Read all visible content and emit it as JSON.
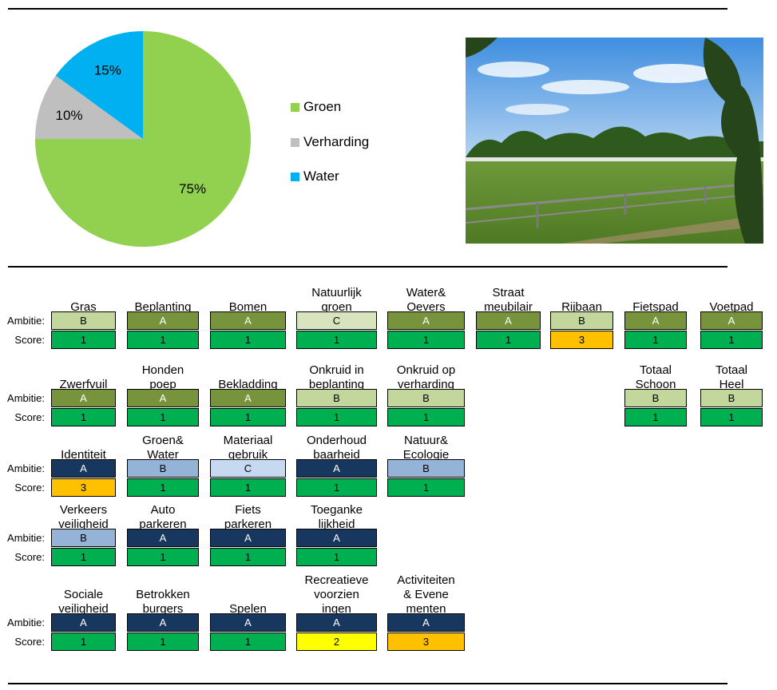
{
  "colors": {
    "groen": "#92D050",
    "verharding": "#BFBFBF",
    "water": "#00B0F0",
    "grA": "#77933C",
    "grB": "#C3D69B",
    "grC": "#D7E4BD",
    "blA": "#17375E",
    "blB": "#95B3D7",
    "blC": "#C6D9F1",
    "s1": "#00B050",
    "s2": "#FFFF00",
    "s3": "#FFC000"
  },
  "chart_data": {
    "type": "pie",
    "slices": [
      {
        "name": "Groen",
        "value": 75,
        "label": "75%",
        "color": "#92D050"
      },
      {
        "name": "Verharding",
        "value": 10,
        "label": "10%",
        "color": "#BFBFBF"
      },
      {
        "name": "Water",
        "value": 15,
        "label": "15%",
        "color": "#00B0F0"
      }
    ],
    "legend_position": "right"
  },
  "photo": {
    "description_icon": "sports-field-photo"
  },
  "labels": {
    "ambitie": "Ambitie:",
    "score": "Score:"
  },
  "grid": {
    "rows": [
      {
        "items": [
          {
            "name": "Gras",
            "ambitie": "B",
            "score": "1",
            "a_color": "#C3D69B",
            "s_color": "#00B050"
          },
          {
            "name": "Beplanting",
            "ambitie": "A",
            "score": "1",
            "a_color": "#77933C",
            "s_color": "#00B050"
          },
          {
            "name": "Bomen",
            "ambitie": "A",
            "score": "1",
            "a_color": "#77933C",
            "s_color": "#00B050"
          },
          {
            "name": "Natuurlijk\ngroen",
            "ambitie": "C",
            "score": "1",
            "a_color": "#D7E4BD",
            "s_color": "#00B050"
          },
          {
            "name": "Water&\nOevers",
            "ambitie": "A",
            "score": "1",
            "a_color": "#77933C",
            "s_color": "#00B050"
          },
          {
            "name": "Straat\nmeubilair",
            "ambitie": "A",
            "score": "1",
            "a_color": "#77933C",
            "s_color": "#00B050"
          },
          {
            "name": "Rijbaan",
            "ambitie": "B",
            "score": "3",
            "a_color": "#C3D69B",
            "s_color": "#FFC000"
          },
          {
            "name": "Fietspad",
            "ambitie": "A",
            "score": "1",
            "a_color": "#77933C",
            "s_color": "#00B050"
          },
          {
            "name": "Voetpad",
            "ambitie": "A",
            "score": "1",
            "a_color": "#77933C",
            "s_color": "#00B050"
          }
        ]
      },
      {
        "items": [
          {
            "name": "Zwerfvuil",
            "ambitie": "A",
            "score": "1",
            "a_color": "#77933C",
            "s_color": "#00B050"
          },
          {
            "name": "Honden\npoep",
            "ambitie": "A",
            "score": "1",
            "a_color": "#77933C",
            "s_color": "#00B050"
          },
          {
            "name": "Bekladding",
            "ambitie": "A",
            "score": "1",
            "a_color": "#77933C",
            "s_color": "#00B050"
          },
          {
            "name": "Onkruid in\nbeplanting",
            "ambitie": "B",
            "score": "1",
            "a_color": "#C3D69B",
            "s_color": "#00B050"
          },
          {
            "name": "Onkruid op\nverharding",
            "ambitie": "B",
            "score": "1",
            "a_color": "#C3D69B",
            "s_color": "#00B050"
          },
          {
            "name": "Totaal\nSchoon",
            "ambitie": "B",
            "score": "1",
            "a_color": "#C3D69B",
            "s_color": "#00B050"
          },
          {
            "name": "Totaal\nHeel",
            "ambitie": "B",
            "score": "1",
            "a_color": "#C3D69B",
            "s_color": "#00B050"
          }
        ]
      },
      {
        "items": [
          {
            "name": "Identiteit",
            "ambitie": "A",
            "score": "3",
            "a_color": "#17375E",
            "s_color": "#FFC000"
          },
          {
            "name": "Groen&\nWater",
            "ambitie": "B",
            "score": "1",
            "a_color": "#95B3D7",
            "s_color": "#00B050"
          },
          {
            "name": "Materiaal\ngebruik",
            "ambitie": "C",
            "score": "1",
            "a_color": "#C6D9F1",
            "s_color": "#00B050"
          },
          {
            "name": "Onderhoud\nbaarheid",
            "ambitie": "A",
            "score": "1",
            "a_color": "#17375E",
            "s_color": "#00B050"
          },
          {
            "name": "Natuur&\nEcologie",
            "ambitie": "B",
            "score": "1",
            "a_color": "#95B3D7",
            "s_color": "#00B050"
          }
        ]
      },
      {
        "items": [
          {
            "name": "Verkeers\nveiligheid",
            "ambitie": "B",
            "score": "1",
            "a_color": "#95B3D7",
            "s_color": "#00B050"
          },
          {
            "name": "Auto\nparkeren",
            "ambitie": "A",
            "score": "1",
            "a_color": "#17375E",
            "s_color": "#00B050"
          },
          {
            "name": "Fiets\nparkeren",
            "ambitie": "A",
            "score": "1",
            "a_color": "#17375E",
            "s_color": "#00B050"
          },
          {
            "name": "Toeganke\nlijkheid",
            "ambitie": "A",
            "score": "1",
            "a_color": "#17375E",
            "s_color": "#00B050"
          }
        ]
      },
      {
        "items": [
          {
            "name": "Sociale\nveiligheid",
            "ambitie": "A",
            "score": "1",
            "a_color": "#17375E",
            "s_color": "#00B050"
          },
          {
            "name": "Betrokken\nburgers",
            "ambitie": "A",
            "score": "1",
            "a_color": "#17375E",
            "s_color": "#00B050"
          },
          {
            "name": "Spelen",
            "ambitie": "A",
            "score": "1",
            "a_color": "#17375E",
            "s_color": "#00B050"
          },
          {
            "name": "Recreatieve\nvoorzien\ningen",
            "ambitie": "A",
            "score": "2",
            "a_color": "#17375E",
            "s_color": "#FFFF00"
          },
          {
            "name": "Activiteiten\n& Evene\nmenten",
            "ambitie": "A",
            "score": "3",
            "a_color": "#17375E",
            "s_color": "#FFC000"
          }
        ]
      }
    ]
  }
}
